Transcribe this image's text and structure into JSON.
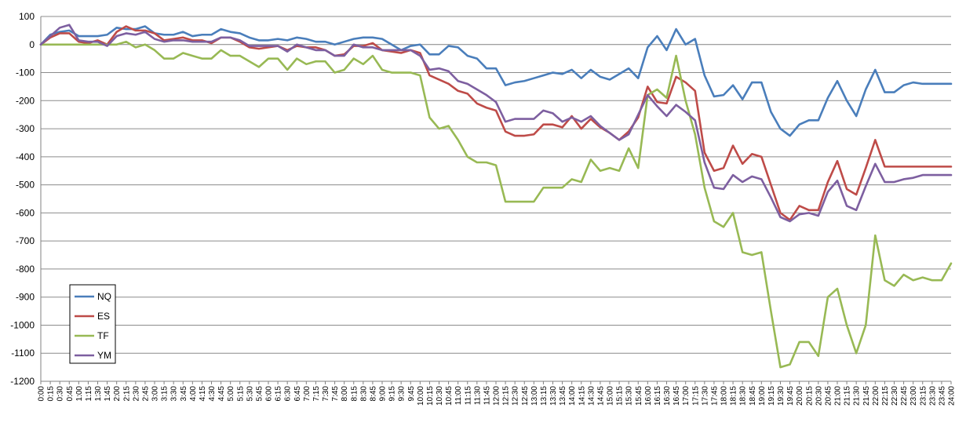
{
  "chart_data": {
    "type": "line",
    "title": "",
    "xlabel": "",
    "ylabel": "",
    "ylim": [
      -1200,
      100
    ],
    "y_ticks": [
      100,
      0,
      -100,
      -200,
      -300,
      -400,
      -500,
      -600,
      -700,
      -800,
      -900,
      -1000,
      -1100,
      -1200
    ],
    "grid": "horizontal",
    "legend_position": "left-bottom",
    "categories": [
      "0:00",
      "0:15",
      "0:30",
      "0:45",
      "1:00",
      "1:15",
      "1:30",
      "1:45",
      "2:00",
      "2:15",
      "2:30",
      "2:45",
      "3:00",
      "3:15",
      "3:30",
      "3:45",
      "4:00",
      "4:15",
      "4:30",
      "4:45",
      "5:00",
      "5:15",
      "5:30",
      "5:45",
      "6:00",
      "6:15",
      "6:30",
      "6:45",
      "7:00",
      "7:15",
      "7:30",
      "7:45",
      "8:00",
      "8:15",
      "8:30",
      "8:45",
      "9:00",
      "9:15",
      "9:30",
      "9:45",
      "10:00",
      "10:15",
      "10:30",
      "10:45",
      "11:00",
      "11:15",
      "11:30",
      "11:45",
      "12:00",
      "12:15",
      "12:30",
      "12:45",
      "13:00",
      "13:15",
      "13:30",
      "13:45",
      "14:00",
      "14:15",
      "14:30",
      "14:45",
      "15:00",
      "15:15",
      "15:30",
      "15:45",
      "16:00",
      "16:15",
      "16:30",
      "16:45",
      "17:00",
      "17:15",
      "17:30",
      "17:45",
      "18:00",
      "18:15",
      "18:30",
      "18:45",
      "19:00",
      "19:15",
      "19:30",
      "19:45",
      "20:00",
      "20:15",
      "20:30",
      "20:45",
      "21:00",
      "21:15",
      "21:30",
      "21:45",
      "22:00",
      "22:15",
      "22:30",
      "22:45",
      "23:00",
      "23:15",
      "23:30",
      "23:45",
      "24:00"
    ],
    "series": [
      {
        "name": "NQ",
        "color": "#4a7ebb",
        "values": [
          0,
          35,
          45,
          50,
          30,
          30,
          30,
          35,
          60,
          55,
          55,
          65,
          40,
          35,
          35,
          45,
          30,
          35,
          35,
          55,
          45,
          40,
          25,
          15,
          15,
          20,
          15,
          25,
          20,
          10,
          10,
          0,
          10,
          20,
          25,
          25,
          20,
          0,
          -20,
          -5,
          0,
          -35,
          -35,
          -5,
          -10,
          -40,
          -50,
          -85,
          -85,
          -145,
          -135,
          -130,
          -120,
          -110,
          -100,
          -105,
          -90,
          -120,
          -90,
          -115,
          -125,
          -105,
          -85,
          -120,
          -10,
          30,
          -20,
          55,
          0,
          20,
          -110,
          -185,
          -180,
          -145,
          -195,
          -135,
          -135,
          -240,
          -300,
          -325,
          -285,
          -270,
          -270,
          -190,
          -130,
          -200,
          -255,
          -160,
          -90,
          -170,
          -170,
          -145,
          -135,
          -140,
          -140,
          -140,
          -140
        ]
      },
      {
        "name": "ES",
        "color": "#be4b48",
        "values": [
          0,
          25,
          40,
          40,
          10,
          5,
          15,
          0,
          45,
          65,
          50,
          50,
          40,
          15,
          20,
          25,
          15,
          15,
          5,
          25,
          25,
          10,
          -10,
          -15,
          -10,
          -5,
          -20,
          -5,
          -10,
          -10,
          -20,
          -40,
          -35,
          -5,
          -5,
          5,
          -20,
          -25,
          -30,
          -20,
          -30,
          -110,
          -125,
          -140,
          -165,
          -175,
          -210,
          -225,
          -235,
          -310,
          -325,
          -325,
          -320,
          -285,
          -285,
          -295,
          -255,
          -300,
          -265,
          -295,
          -315,
          -340,
          -310,
          -260,
          -150,
          -205,
          -210,
          -115,
          -135,
          -165,
          -385,
          -450,
          -440,
          -360,
          -425,
          -390,
          -400,
          -500,
          -600,
          -625,
          -575,
          -590,
          -590,
          -490,
          -415,
          -515,
          -535,
          -440,
          -340,
          -435,
          -435,
          -435,
          -435,
          -435,
          -435,
          -435,
          -435
        ]
      },
      {
        "name": "TF",
        "color": "#98b954",
        "values": [
          0,
          0,
          0,
          0,
          0,
          0,
          0,
          0,
          0,
          10,
          -10,
          0,
          -20,
          -50,
          -50,
          -30,
          -40,
          -50,
          -50,
          -20,
          -40,
          -40,
          -60,
          -80,
          -50,
          -50,
          -90,
          -50,
          -70,
          -60,
          -60,
          -100,
          -90,
          -50,
          -70,
          -40,
          -90,
          -100,
          -100,
          -100,
          -110,
          -260,
          -300,
          -290,
          -340,
          -400,
          -420,
          -420,
          -430,
          -560,
          -560,
          -560,
          -560,
          -510,
          -510,
          -510,
          -480,
          -490,
          -410,
          -450,
          -440,
          -450,
          -370,
          -440,
          -180,
          -160,
          -190,
          -40,
          -200,
          -320,
          -510,
          -630,
          -650,
          -600,
          -740,
          -750,
          -740,
          -950,
          -1150,
          -1140,
          -1060,
          -1060,
          -1110,
          -900,
          -870,
          -1000,
          -1100,
          -1000,
          -680,
          -840,
          -860,
          -820,
          -840,
          -830,
          -840,
          -840,
          -780
        ]
      },
      {
        "name": "YM",
        "color": "#7d5fa0",
        "values": [
          0,
          30,
          60,
          70,
          15,
          10,
          10,
          -5,
          30,
          40,
          35,
          45,
          20,
          10,
          15,
          15,
          10,
          10,
          10,
          25,
          25,
          15,
          -5,
          -5,
          -5,
          -5,
          -25,
          0,
          -10,
          -20,
          -20,
          -40,
          -40,
          0,
          -10,
          -10,
          -20,
          -20,
          -20,
          -20,
          -40,
          -90,
          -85,
          -95,
          -130,
          -140,
          -160,
          -180,
          -205,
          -275,
          -265,
          -265,
          -265,
          -235,
          -245,
          -275,
          -260,
          -275,
          -255,
          -290,
          -315,
          -340,
          -320,
          -250,
          -180,
          -220,
          -255,
          -215,
          -240,
          -270,
          -420,
          -510,
          -515,
          -465,
          -490,
          -470,
          -480,
          -545,
          -615,
          -630,
          -605,
          -600,
          -610,
          -525,
          -485,
          -575,
          -590,
          -505,
          -425,
          -490,
          -490,
          -480,
          -475,
          -465,
          -465,
          -465,
          -465
        ]
      }
    ]
  }
}
